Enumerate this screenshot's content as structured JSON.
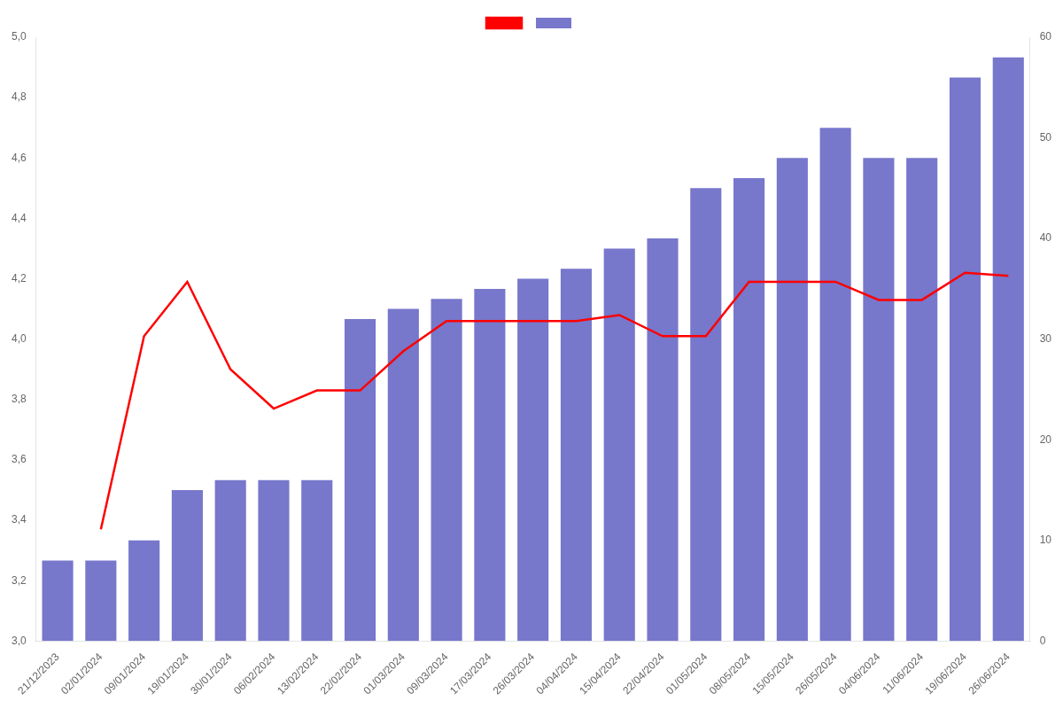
{
  "chart_data": {
    "type": "bar",
    "categories": [
      "21/12/2023",
      "02/01/2024",
      "09/01/2024",
      "19/01/2024",
      "30/01/2024",
      "06/02/2024",
      "13/02/2024",
      "22/02/2024",
      "01/03/2024",
      "09/03/2024",
      "17/03/2024",
      "26/03/2024",
      "04/04/2024",
      "15/04/2024",
      "22/04/2024",
      "01/05/2024",
      "08/05/2024",
      "15/05/2024",
      "26/05/2024",
      "04/06/2024",
      "11/06/2024",
      "19/06/2024",
      "26/06/2024"
    ],
    "series": [
      {
        "type": "line",
        "color": "#ff0000",
        "values": [
          null,
          3.37,
          4.01,
          4.19,
          3.9,
          3.77,
          3.83,
          3.83,
          3.96,
          4.06,
          4.06,
          4.06,
          4.06,
          4.08,
          4.01,
          4.01,
          4.19,
          4.19,
          4.19,
          4.13,
          4.13,
          4.22,
          4.21
        ]
      },
      {
        "type": "bar",
        "color": "#7777cc",
        "axis": "y2",
        "values": [
          8,
          8,
          10,
          15,
          16,
          16,
          16,
          32,
          33,
          34,
          35,
          36,
          37,
          39,
          40,
          45,
          46,
          48,
          51,
          48,
          48,
          56,
          58
        ]
      }
    ],
    "ylim": [
      3.0,
      5.0
    ],
    "yticks": [
      {
        "value": 3.0,
        "label": "3,0"
      },
      {
        "value": 3.2,
        "label": "3,2"
      },
      {
        "value": 3.4,
        "label": "3,4"
      },
      {
        "value": 3.6,
        "label": "3,6"
      },
      {
        "value": 3.8,
        "label": "3,8"
      },
      {
        "value": 4.0,
        "label": "4,0"
      },
      {
        "value": 4.2,
        "label": "4,2"
      },
      {
        "value": 4.4,
        "label": "4,4"
      },
      {
        "value": 4.6,
        "label": "4,6"
      },
      {
        "value": 4.8,
        "label": "4,8"
      },
      {
        "value": 5.0,
        "label": "5,0"
      }
    ],
    "y2lim": [
      0,
      60
    ],
    "y2ticks": [
      0,
      10,
      20,
      30,
      40,
      50,
      60
    ],
    "grid": false,
    "legend": "top"
  }
}
